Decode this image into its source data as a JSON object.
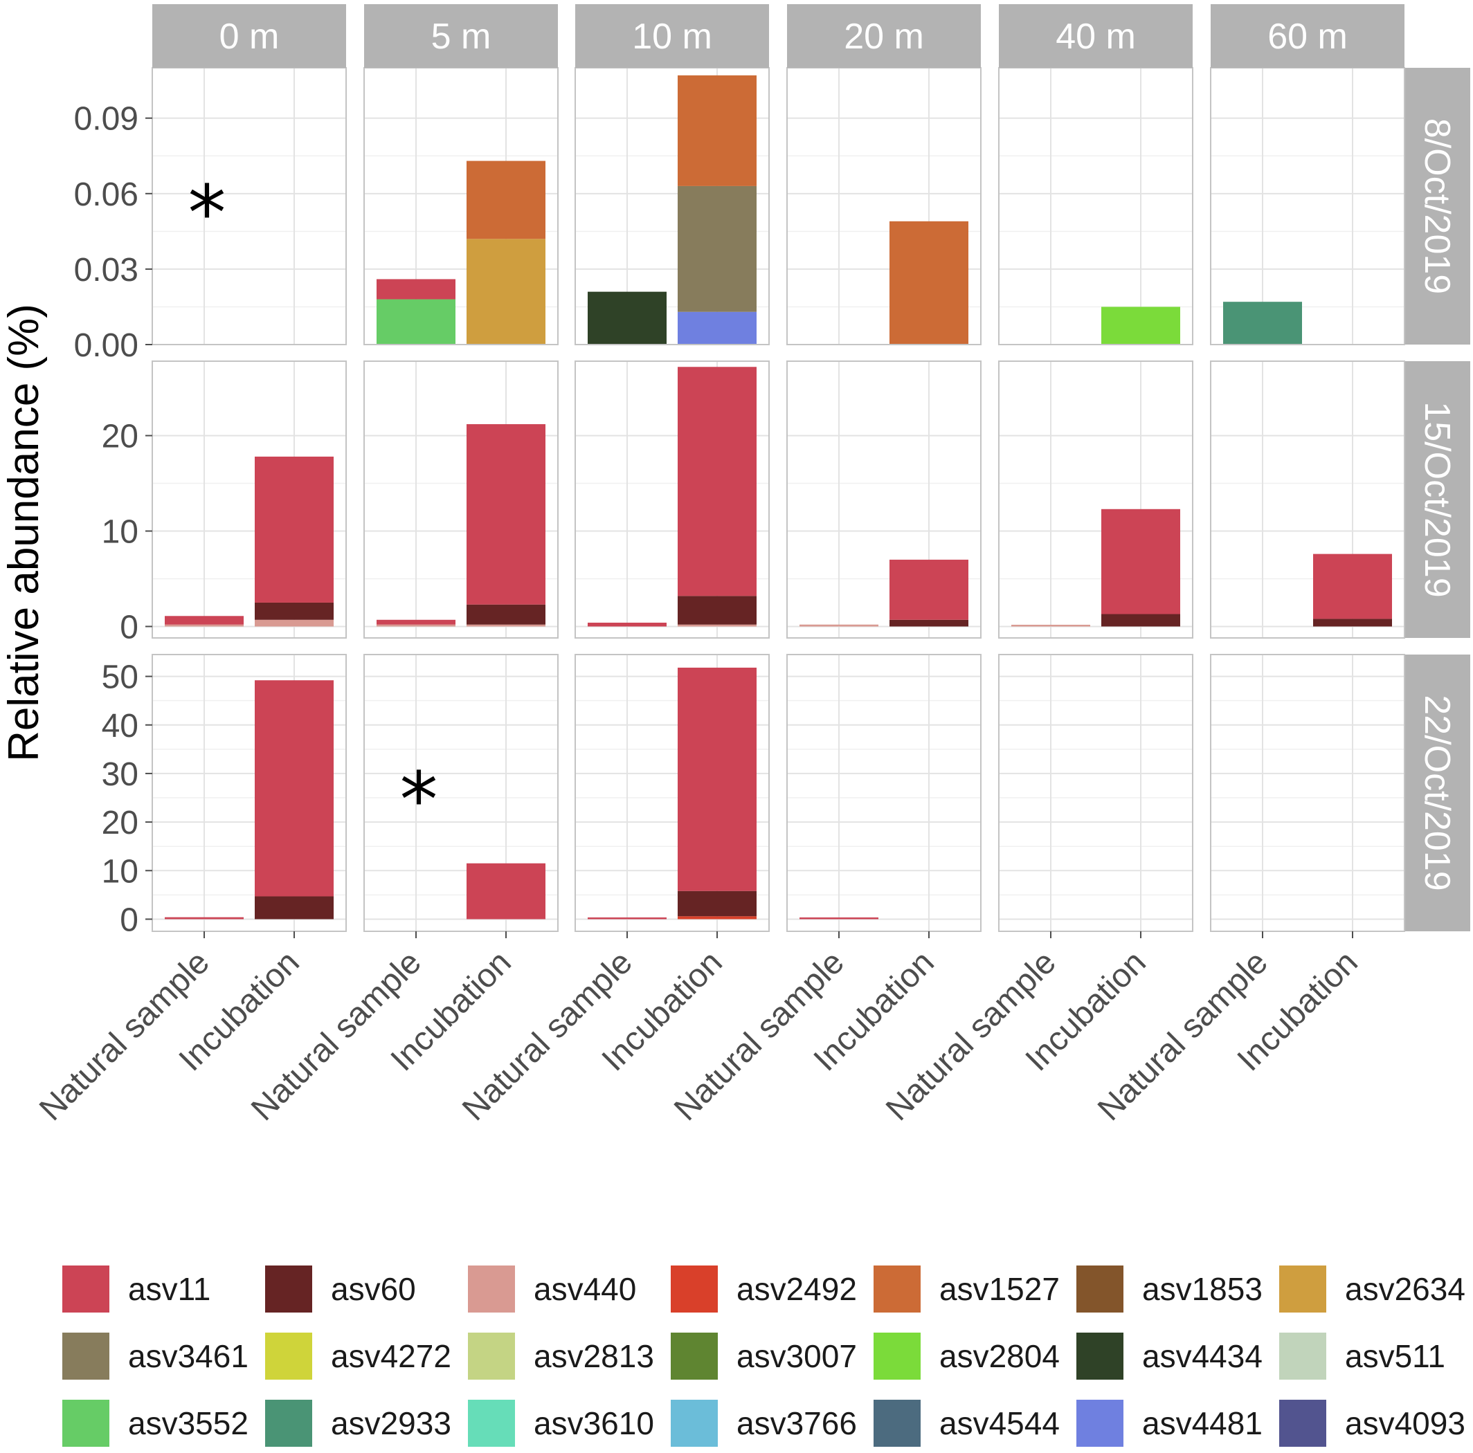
{
  "chart_data": {
    "type": "bar",
    "stacked": true,
    "ylabel": "Relative abundance (%)",
    "xlabel": "",
    "columns": [
      "0 m",
      "5 m",
      "10 m",
      "20 m",
      "40 m",
      "60 m"
    ],
    "rows": [
      {
        "label": "8/Oct/2019",
        "ylim": [
          0,
          0.11
        ],
        "ticks": [
          "0.00",
          "0.03",
          "0.06",
          "0.09"
        ],
        "tick_values": [
          0,
          0.03,
          0.06,
          0.09
        ]
      },
      {
        "label": "15/Oct/2019",
        "ylim": [
          -1.2,
          27.8
        ],
        "ticks": [
          "0",
          "10",
          "20"
        ],
        "tick_values": [
          0,
          10,
          20
        ]
      },
      {
        "label": "22/Oct/2019",
        "ylim": [
          -2.5,
          54.5
        ],
        "ticks": [
          "0",
          "10",
          "20",
          "30",
          "40",
          "50"
        ],
        "tick_values": [
          0,
          10,
          20,
          30,
          40,
          50
        ]
      }
    ],
    "categories": [
      "Natural sample",
      "Incubation"
    ],
    "grid": true,
    "legend_position": "bottom",
    "legend": [
      {
        "name": "asv11",
        "color": "#cc4455"
      },
      {
        "name": "asv60",
        "color": "#662424"
      },
      {
        "name": "asv440",
        "color": "#d99a92"
      },
      {
        "name": "asv2492",
        "color": "#d9402a"
      },
      {
        "name": "asv1527",
        "color": "#cc6b36"
      },
      {
        "name": "asv1853",
        "color": "#83552b"
      },
      {
        "name": "asv2634",
        "color": "#cf9e3f"
      },
      {
        "name": "asv3461",
        "color": "#877c5c"
      },
      {
        "name": "asv4272",
        "color": "#cfd43a"
      },
      {
        "name": "asv2813",
        "color": "#c4d484"
      },
      {
        "name": "asv3007",
        "color": "#5f8531"
      },
      {
        "name": "asv2804",
        "color": "#7bdb3a"
      },
      {
        "name": "asv4434",
        "color": "#2f4227"
      },
      {
        "name": "asv511",
        "color": "#c1d4bb"
      },
      {
        "name": "asv3552",
        "color": "#66cc66"
      },
      {
        "name": "asv2933",
        "color": "#4a9475"
      },
      {
        "name": "asv3610",
        "color": "#66ddb8"
      },
      {
        "name": "asv3766",
        "color": "#6bbdd9"
      },
      {
        "name": "asv4544",
        "color": "#4c6b7f"
      },
      {
        "name": "asv4481",
        "color": "#6f80e0"
      },
      {
        "name": "asv4093",
        "color": "#52548f"
      }
    ],
    "panels": [
      {
        "row": 0,
        "col": 0,
        "star": "*",
        "bars": [
          [],
          []
        ]
      },
      {
        "row": 0,
        "col": 1,
        "bars": [
          [
            {
              "asv": "asv3552",
              "value": 0.018
            },
            {
              "asv": "asv11",
              "value": 0.008
            }
          ],
          [
            {
              "asv": "asv2634",
              "value": 0.042
            },
            {
              "asv": "asv1527",
              "value": 0.031
            }
          ]
        ]
      },
      {
        "row": 0,
        "col": 2,
        "bars": [
          [
            {
              "asv": "asv4434",
              "value": 0.021
            }
          ],
          [
            {
              "asv": "asv4481",
              "value": 0.013
            },
            {
              "asv": "asv3461",
              "value": 0.05
            },
            {
              "asv": "asv1527",
              "value": 0.044
            }
          ]
        ]
      },
      {
        "row": 0,
        "col": 3,
        "bars": [
          [],
          [
            {
              "asv": "asv1527",
              "value": 0.049
            }
          ]
        ]
      },
      {
        "row": 0,
        "col": 4,
        "bars": [
          [],
          [
            {
              "asv": "asv2804",
              "value": 0.015
            }
          ]
        ]
      },
      {
        "row": 0,
        "col": 5,
        "bars": [
          [
            {
              "asv": "asv2933",
              "value": 0.017
            }
          ],
          []
        ]
      },
      {
        "row": 1,
        "col": 0,
        "bars": [
          [
            {
              "asv": "asv440",
              "value": 0.2
            },
            {
              "asv": "asv11",
              "value": 0.9
            }
          ],
          [
            {
              "asv": "asv440",
              "value": 0.7
            },
            {
              "asv": "asv60",
              "value": 1.8
            },
            {
              "asv": "asv11",
              "value": 15.3
            }
          ]
        ]
      },
      {
        "row": 1,
        "col": 1,
        "bars": [
          [
            {
              "asv": "asv440",
              "value": 0.2
            },
            {
              "asv": "asv11",
              "value": 0.5
            }
          ],
          [
            {
              "asv": "asv440",
              "value": 0.2
            },
            {
              "asv": "asv60",
              "value": 2.1
            },
            {
              "asv": "asv11",
              "value": 18.9
            }
          ]
        ]
      },
      {
        "row": 1,
        "col": 2,
        "bars": [
          [
            {
              "asv": "asv11",
              "value": 0.4
            }
          ],
          [
            {
              "asv": "asv440",
              "value": 0.2
            },
            {
              "asv": "asv60",
              "value": 3.0
            },
            {
              "asv": "asv11",
              "value": 24.0
            }
          ]
        ]
      },
      {
        "row": 1,
        "col": 3,
        "bars": [
          [
            {
              "asv": "asv440",
              "value": 0.2
            }
          ],
          [
            {
              "asv": "asv60",
              "value": 0.7
            },
            {
              "asv": "asv11",
              "value": 6.3
            }
          ]
        ]
      },
      {
        "row": 1,
        "col": 4,
        "bars": [
          [
            {
              "asv": "asv440",
              "value": 0.1
            }
          ],
          [
            {
              "asv": "asv60",
              "value": 1.3
            },
            {
              "asv": "asv11",
              "value": 11.0
            }
          ]
        ]
      },
      {
        "row": 1,
        "col": 5,
        "bars": [
          [],
          [
            {
              "asv": "asv60",
              "value": 0.8
            },
            {
              "asv": "asv11",
              "value": 6.8
            }
          ]
        ]
      },
      {
        "row": 2,
        "col": 0,
        "bars": [
          [
            {
              "asv": "asv11",
              "value": 0.4
            }
          ],
          [
            {
              "asv": "asv60",
              "value": 4.7
            },
            {
              "asv": "asv11",
              "value": 44.5
            }
          ]
        ]
      },
      {
        "row": 2,
        "col": 1,
        "star": "*",
        "bars": [
          [],
          [
            {
              "asv": "asv11",
              "value": 11.5
            }
          ]
        ]
      },
      {
        "row": 2,
        "col": 2,
        "bars": [
          [
            {
              "asv": "asv11",
              "value": 0.2
            }
          ],
          [
            {
              "asv": "asv2492",
              "value": 0.6
            },
            {
              "asv": "asv60",
              "value": 5.2
            },
            {
              "asv": "asv11",
              "value": 46.0
            }
          ]
        ]
      },
      {
        "row": 2,
        "col": 3,
        "bars": [
          [
            {
              "asv": "asv11",
              "value": 0.15
            }
          ],
          []
        ]
      },
      {
        "row": 2,
        "col": 4,
        "bars": [
          [],
          []
        ]
      },
      {
        "row": 2,
        "col": 5,
        "bars": [
          [],
          []
        ]
      }
    ]
  }
}
